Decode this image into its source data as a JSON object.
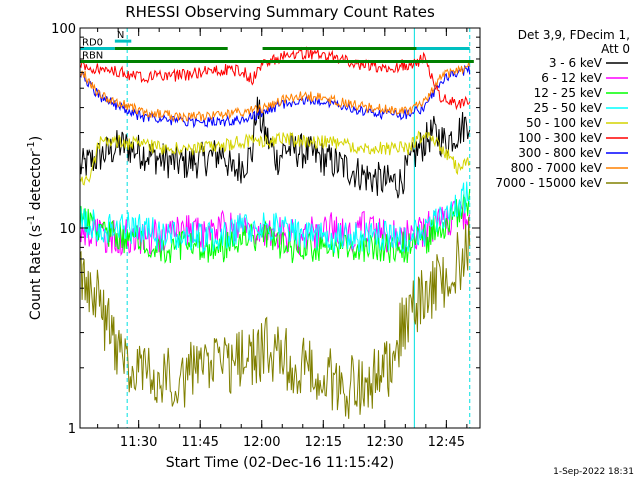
{
  "chart_data": {
    "type": "line",
    "title": "RHESSI Observing Summary Count Rates",
    "xlabel": "Start Time (02-Dec-16 11:15:42)",
    "ylabel": "Count Rate (s",
    "ylabel_exp1": "-1",
    "ylabel_mid": " detector",
    "ylabel_exp2": "-1",
    "ylabel_end": ")",
    "y_scale": "log",
    "ylim": [
      1,
      100
    ],
    "xlim_minutes": [
      0,
      97.5
    ],
    "x_ticks": [
      {
        "label": "11:30",
        "minute": 14.3
      },
      {
        "label": "11:45",
        "minute": 29.3
      },
      {
        "label": "12:00",
        "minute": 44.3
      },
      {
        "label": "12:15",
        "minute": 59.3
      },
      {
        "label": "12:30",
        "minute": 74.3
      },
      {
        "label": "12:45",
        "minute": 89.3
      }
    ],
    "y_ticks": [
      {
        "label": "1",
        "value": 1
      },
      {
        "label": "10",
        "value": 10
      },
      {
        "label": "100",
        "value": 100
      }
    ],
    "legend": {
      "header": [
        "Det 3,9, FDecim 1,",
        "Att 0"
      ],
      "position": "right"
    },
    "series": [
      {
        "name": "3 - 6 keV",
        "color": "#000000",
        "values": [
          [
            0,
            20
          ],
          [
            5,
            23
          ],
          [
            10,
            26
          ],
          [
            15,
            24
          ],
          [
            20,
            22
          ],
          [
            25,
            21
          ],
          [
            30,
            22
          ],
          [
            35,
            24
          ],
          [
            37,
            19
          ],
          [
            40,
            21
          ],
          [
            42,
            24
          ],
          [
            43,
            40
          ],
          [
            45,
            30
          ],
          [
            48,
            22
          ],
          [
            50,
            25
          ],
          [
            55,
            24
          ],
          [
            60,
            22
          ],
          [
            65,
            20
          ],
          [
            70,
            18
          ],
          [
            75,
            17
          ],
          [
            78,
            17
          ],
          [
            82,
            24
          ],
          [
            86,
            30
          ],
          [
            89,
            27
          ],
          [
            92,
            30
          ],
          [
            95,
            35
          ]
        ]
      },
      {
        "name": "6 - 12 keV",
        "color": "#ff00ff",
        "values": [
          [
            0,
            10
          ],
          [
            5,
            9
          ],
          [
            10,
            9
          ],
          [
            15,
            9
          ],
          [
            20,
            9
          ],
          [
            25,
            10
          ],
          [
            30,
            9
          ],
          [
            35,
            10
          ],
          [
            40,
            10
          ],
          [
            45,
            10
          ],
          [
            50,
            9
          ],
          [
            55,
            9
          ],
          [
            60,
            10
          ],
          [
            65,
            9
          ],
          [
            70,
            10
          ],
          [
            75,
            9
          ],
          [
            80,
            9
          ],
          [
            85,
            10
          ],
          [
            90,
            11
          ],
          [
            95,
            12
          ]
        ]
      },
      {
        "name": "12 - 25 keV",
        "color": "#00ff00",
        "values": [
          [
            0,
            11
          ],
          [
            5,
            10
          ],
          [
            10,
            9
          ],
          [
            15,
            9
          ],
          [
            20,
            8
          ],
          [
            25,
            8
          ],
          [
            30,
            8
          ],
          [
            35,
            8
          ],
          [
            40,
            9
          ],
          [
            45,
            9
          ],
          [
            50,
            8
          ],
          [
            55,
            8
          ],
          [
            60,
            8
          ],
          [
            65,
            8
          ],
          [
            70,
            8
          ],
          [
            75,
            8
          ],
          [
            80,
            8
          ],
          [
            85,
            9
          ],
          [
            90,
            11
          ],
          [
            95,
            14
          ]
        ]
      },
      {
        "name": "25 - 50 keV",
        "color": "#00ffff",
        "values": [
          [
            0,
            11
          ],
          [
            5,
            10
          ],
          [
            10,
            10
          ],
          [
            15,
            10
          ],
          [
            20,
            9
          ],
          [
            25,
            9
          ],
          [
            30,
            9
          ],
          [
            35,
            9
          ],
          [
            40,
            10
          ],
          [
            45,
            10
          ],
          [
            50,
            10
          ],
          [
            55,
            9
          ],
          [
            60,
            9
          ],
          [
            65,
            9
          ],
          [
            70,
            9
          ],
          [
            75,
            9
          ],
          [
            80,
            9
          ],
          [
            85,
            10
          ],
          [
            90,
            12
          ],
          [
            95,
            15
          ]
        ]
      },
      {
        "name": "50 - 100 keV",
        "color": "#d4d400",
        "values": [
          [
            0,
            17
          ],
          [
            2,
            17
          ],
          [
            5,
            28
          ],
          [
            10,
            27
          ],
          [
            15,
            26
          ],
          [
            20,
            25
          ],
          [
            25,
            25
          ],
          [
            30,
            25
          ],
          [
            35,
            26
          ],
          [
            40,
            27
          ],
          [
            45,
            27
          ],
          [
            50,
            28
          ],
          [
            55,
            27
          ],
          [
            60,
            27
          ],
          [
            65,
            26
          ],
          [
            70,
            25
          ],
          [
            75,
            25
          ],
          [
            80,
            25
          ],
          [
            82,
            28
          ],
          [
            86,
            28
          ],
          [
            89,
            24
          ],
          [
            92,
            20
          ],
          [
            95,
            22
          ]
        ]
      },
      {
        "name": "100 - 300 keV",
        "color": "#ff0000",
        "values": [
          [
            0,
            65
          ],
          [
            5,
            62
          ],
          [
            10,
            60
          ],
          [
            15,
            57
          ],
          [
            20,
            57
          ],
          [
            25,
            58
          ],
          [
            30,
            60
          ],
          [
            33,
            62
          ],
          [
            36,
            62
          ],
          [
            40,
            60
          ],
          [
            42,
            55
          ],
          [
            44,
            65
          ],
          [
            48,
            70
          ],
          [
            52,
            75
          ],
          [
            56,
            75
          ],
          [
            60,
            72
          ],
          [
            64,
            70
          ],
          [
            68,
            66
          ],
          [
            72,
            64
          ],
          [
            76,
            64
          ],
          [
            80,
            66
          ],
          [
            84,
            70
          ],
          [
            88,
            45
          ],
          [
            92,
            42
          ],
          [
            95,
            44
          ]
        ]
      },
      {
        "name": "300 - 800 keV",
        "color": "#0000ff",
        "values": [
          [
            0,
            60
          ],
          [
            5,
            45
          ],
          [
            10,
            40
          ],
          [
            15,
            36
          ],
          [
            20,
            35
          ],
          [
            25,
            34
          ],
          [
            30,
            34
          ],
          [
            35,
            34
          ],
          [
            40,
            35
          ],
          [
            45,
            38
          ],
          [
            50,
            42
          ],
          [
            55,
            44
          ],
          [
            60,
            42
          ],
          [
            65,
            40
          ],
          [
            70,
            38
          ],
          [
            75,
            37
          ],
          [
            80,
            37
          ],
          [
            84,
            40
          ],
          [
            88,
            55
          ],
          [
            92,
            60
          ],
          [
            95,
            62
          ]
        ]
      },
      {
        "name": "800 - 7000 keV",
        "color": "#ff8000",
        "values": [
          [
            0,
            62
          ],
          [
            5,
            46
          ],
          [
            10,
            42
          ],
          [
            15,
            38
          ],
          [
            20,
            37
          ],
          [
            25,
            36
          ],
          [
            30,
            36
          ],
          [
            35,
            37
          ],
          [
            40,
            38
          ],
          [
            45,
            40
          ],
          [
            50,
            44
          ],
          [
            55,
            46
          ],
          [
            60,
            44
          ],
          [
            65,
            42
          ],
          [
            70,
            40
          ],
          [
            75,
            39
          ],
          [
            80,
            39
          ],
          [
            84,
            42
          ],
          [
            88,
            57
          ],
          [
            92,
            62
          ],
          [
            95,
            64
          ]
        ]
      },
      {
        "name": "7000 - 15000 keV",
        "color": "#808000",
        "values": [
          [
            0,
            6
          ],
          [
            3,
            5
          ],
          [
            6,
            3.5
          ],
          [
            9,
            2.5
          ],
          [
            12,
            2
          ],
          [
            16,
            2
          ],
          [
            20,
            1.8
          ],
          [
            25,
            1.8
          ],
          [
            30,
            2
          ],
          [
            35,
            2
          ],
          [
            40,
            2.2
          ],
          [
            45,
            2.5
          ],
          [
            50,
            2.2
          ],
          [
            55,
            2
          ],
          [
            60,
            1.8
          ],
          [
            65,
            1.6
          ],
          [
            70,
            1.6
          ],
          [
            75,
            2
          ],
          [
            78,
            3
          ],
          [
            82,
            4
          ],
          [
            86,
            5
          ],
          [
            90,
            6
          ],
          [
            95,
            8
          ]
        ]
      }
    ],
    "state_bars": [
      {
        "label": "RD0",
        "color": "#00c0c0",
        "value": 79,
        "segments": [
          [
            0,
            8.5
          ],
          [
            81,
            95
          ]
        ]
      },
      {
        "label": "N",
        "color": "#00c0c0",
        "value": 86,
        "segments": [
          [
            8.5,
            12.5
          ]
        ]
      },
      {
        "label": "",
        "color": "#008000",
        "value": 79,
        "segments": [
          [
            8.5,
            36
          ],
          [
            44.5,
            82
          ]
        ]
      },
      {
        "label": "RBN",
        "color": "#008000",
        "value": 68,
        "segments": [
          [
            0,
            44.5
          ],
          [
            44.5,
            96
          ]
        ]
      }
    ],
    "vertical_markers": [
      {
        "minute": 0,
        "style": "solid"
      },
      {
        "minute": 11.5,
        "style": "dashed"
      },
      {
        "minute": 81.5,
        "style": "solid"
      },
      {
        "minute": 95,
        "style": "dashed"
      }
    ]
  },
  "footer": {
    "timestamp": "1-Sep-2022 18:31"
  }
}
